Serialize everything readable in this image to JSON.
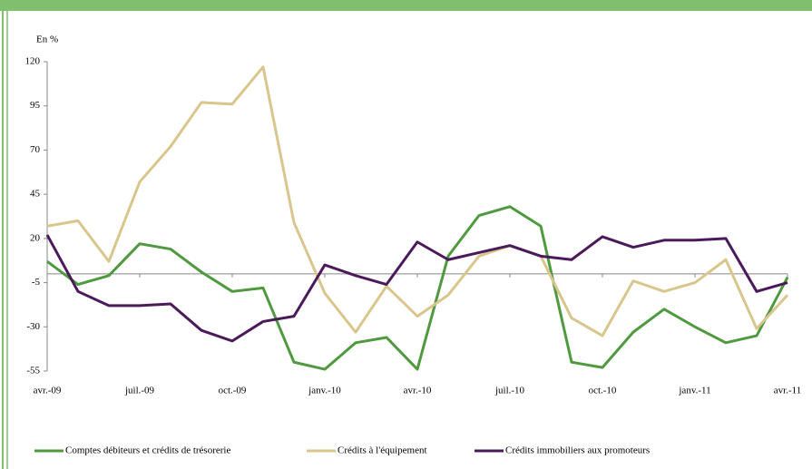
{
  "chart_data": {
    "type": "line",
    "y_axis_label": "En %",
    "categories": [
      "avr.-09",
      null,
      null,
      "juil.-09",
      null,
      null,
      "oct.-09",
      null,
      null,
      "janv.-10",
      null,
      null,
      "avr.-10",
      null,
      null,
      "juil.-10",
      null,
      null,
      "oct.-10",
      null,
      null,
      "janv.-11",
      null,
      null,
      "avr.-11"
    ],
    "ylim": [
      -55,
      120
    ],
    "yticks": [
      120,
      95,
      70,
      45,
      20,
      -5,
      -30,
      -55
    ],
    "series": [
      {
        "name": "Comptes débiteurs et crédits de trésorerie",
        "color": "#4f9a3f",
        "values": [
          7,
          -6,
          -1,
          17,
          14,
          1,
          -10,
          -8,
          -50,
          -54,
          -39,
          -36,
          -54,
          10,
          33,
          38,
          27,
          -50,
          -53,
          -33,
          -20,
          -30,
          -39,
          -35,
          -2
        ]
      },
      {
        "name": "Crédits à l'équipement",
        "color": "#d9c68c",
        "values": [
          27,
          30,
          7,
          52,
          72,
          97,
          96,
          117,
          29,
          -11,
          -33,
          -7,
          -24,
          -12,
          10,
          16,
          10,
          -25,
          -35,
          -4,
          -10,
          -5,
          8,
          -31,
          -12
        ]
      },
      {
        "name": "Crédits immobiliers aux promoteurs",
        "color": "#4a1a5a",
        "values": [
          22,
          -10,
          -18,
          -18,
          -17,
          -32,
          -38,
          -27,
          -24,
          5,
          -1,
          -6,
          18,
          8,
          12,
          16,
          10,
          8,
          21,
          15,
          19,
          19,
          20,
          -10,
          -5
        ]
      }
    ]
  }
}
